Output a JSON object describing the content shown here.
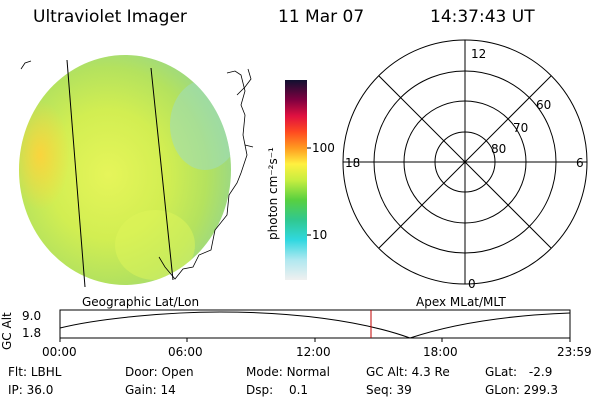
{
  "header": {
    "instrument": "Ultraviolet Imager",
    "date": "11 Mar 07",
    "time": "14:37:43 UT"
  },
  "image_panel": {
    "label": "Geographic Lat/Lon"
  },
  "colorbar": {
    "unit_label": "photon cm⁻²s⁻¹",
    "tick_100": "100",
    "tick_10": "10"
  },
  "polar_plot": {
    "label": "Apex MLat/MLT",
    "mlt_12": "12",
    "mlt_18": "18",
    "mlt_6": "6",
    "mlt_0": "0",
    "lat_60": "60",
    "lat_70": "70",
    "lat_80": "80"
  },
  "altitude_plot": {
    "ylabel": "GC Alt",
    "y_max": "9.0",
    "y_min": "1.8",
    "x_ticks": [
      "00:00",
      "06:00",
      "12:00",
      "18:00",
      "23:59"
    ],
    "marker_color": "#c00000"
  },
  "status": {
    "flt_label": "Flt:",
    "flt_value": "LBHL",
    "ip_label": "IP:",
    "ip_value": "36.0",
    "door_label": "Door:",
    "door_value": "Open",
    "gain_label": "Gain:",
    "gain_value": "14",
    "mode_label": "Mode:",
    "mode_value": "Normal",
    "dsp_label": "Dsp:",
    "dsp_value": "0.1",
    "gcalt_label": "GC Alt:",
    "gcalt_value": "4.3 Re",
    "seq_label": "Seq:",
    "seq_value": "39",
    "glat_label": "GLat:",
    "glat_value": "-2.9",
    "glon_label": "GLon:",
    "glon_value": "299.3"
  }
}
